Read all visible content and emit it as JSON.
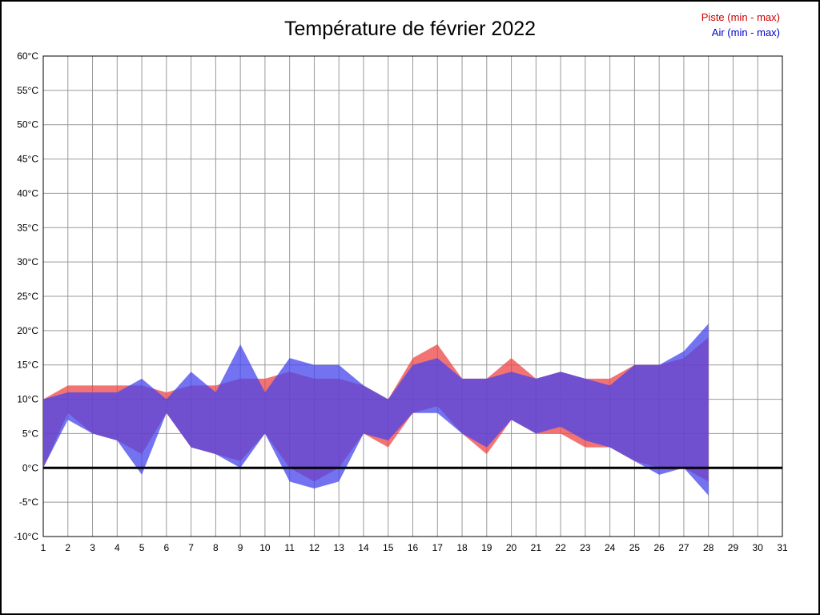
{
  "chart_data": {
    "type": "area",
    "title": "Température de février 2022",
    "legend": [
      {
        "label": "Piste (min - max)",
        "color": "#cc0000"
      },
      {
        "label": "Air (min - max)",
        "color": "#0000cc"
      }
    ],
    "x": [
      1,
      2,
      3,
      4,
      5,
      6,
      7,
      8,
      9,
      10,
      11,
      12,
      13,
      14,
      15,
      16,
      17,
      18,
      19,
      20,
      21,
      22,
      23,
      24,
      25,
      26,
      27,
      28
    ],
    "xlim": [
      1,
      31
    ],
    "ylim": [
      -10,
      60
    ],
    "y_tick_step": 5,
    "x_tick_labels": [
      "1",
      "2",
      "3",
      "4",
      "5",
      "6",
      "7",
      "8",
      "9",
      "10",
      "11",
      "12",
      "13",
      "14",
      "15",
      "16",
      "17",
      "18",
      "19",
      "20",
      "21",
      "22",
      "23",
      "24",
      "25",
      "26",
      "27",
      "28",
      "29",
      "30",
      "31"
    ],
    "y_tick_values": [
      60,
      55,
      50,
      45,
      40,
      35,
      30,
      25,
      20,
      15,
      10,
      5,
      0,
      -5,
      -10
    ],
    "y_tick_labels": [
      "60°C",
      "55°C",
      "50°C",
      "45°C",
      "40°C",
      "35°C",
      "30°C",
      "25°C",
      "20°C",
      "15°C",
      "10°C",
      "5°C",
      "0°C",
      "-5°C",
      "-10°C"
    ],
    "zero_line_value": 0,
    "grid": true,
    "series": [
      {
        "name": "Piste",
        "fill": "#ee4444",
        "opacity": 0.75,
        "min": [
          0,
          8,
          5,
          4,
          2,
          8,
          3,
          2,
          1,
          5,
          0,
          -2,
          0,
          5,
          3,
          8,
          9,
          5,
          2,
          7,
          5,
          5,
          3,
          3,
          1,
          0,
          0,
          -2
        ],
        "max": [
          10,
          12,
          12,
          12,
          12,
          11,
          12,
          12,
          13,
          13,
          14,
          13,
          13,
          12,
          10,
          16,
          18,
          13,
          13,
          16,
          13,
          14,
          13,
          13,
          15,
          15,
          16,
          19
        ]
      },
      {
        "name": "Air",
        "fill": "#4444ee",
        "opacity": 0.75,
        "min": [
          0,
          7,
          5,
          4,
          -1,
          8,
          3,
          2,
          0,
          5,
          -2,
          -3,
          -2,
          5,
          4,
          8,
          8,
          5,
          3,
          7,
          5,
          6,
          4,
          3,
          1,
          -1,
          0,
          -4
        ],
        "max": [
          10,
          11,
          11,
          11,
          13,
          10,
          14,
          11,
          18,
          11,
          16,
          15,
          15,
          12,
          10,
          15,
          16,
          13,
          13,
          14,
          13,
          14,
          13,
          12,
          15,
          15,
          17,
          21
        ]
      }
    ],
    "colors": {
      "grid": "#999999",
      "border": "#000000",
      "zero_line": "#000000",
      "tick_text": "#000000"
    }
  }
}
